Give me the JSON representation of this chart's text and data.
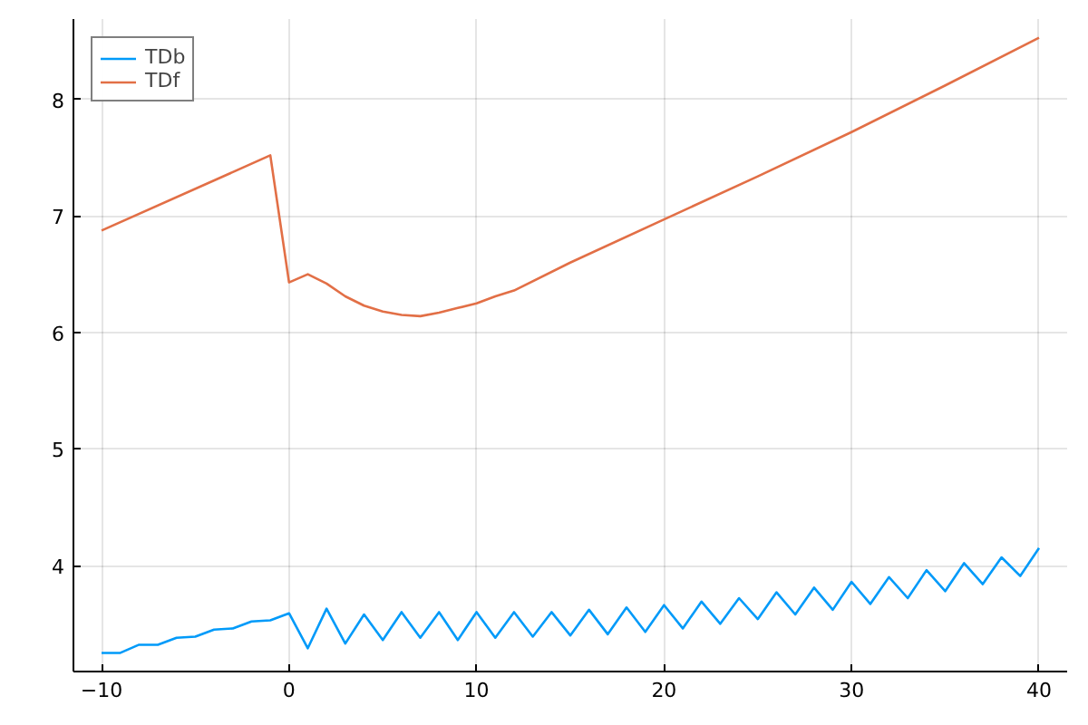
{
  "chart_data": {
    "type": "line",
    "xlim": [
      -11.5,
      41.5
    ],
    "ylim": [
      3.09,
      8.69
    ],
    "xticks": [
      -10,
      0,
      10,
      20,
      30,
      40
    ],
    "yticks": [
      4,
      5,
      6,
      7,
      8
    ],
    "grid": true,
    "legend": "top left",
    "series": [
      {
        "name": "TDb",
        "color": "#009af9",
        "x": [
          -10,
          -9,
          -8,
          -7,
          -6,
          -5,
          -4,
          -3,
          -2,
          -1,
          0,
          1,
          2,
          3,
          4,
          5,
          6,
          7,
          8,
          9,
          10,
          11,
          12,
          13,
          14,
          15,
          16,
          17,
          18,
          19,
          20,
          21,
          22,
          23,
          24,
          25,
          26,
          27,
          28,
          29,
          30,
          31,
          32,
          33,
          34,
          35,
          36,
          37,
          38,
          39,
          40
        ],
        "values": [
          3.25,
          3.25,
          3.32,
          3.32,
          3.38,
          3.39,
          3.45,
          3.46,
          3.52,
          3.53,
          3.59,
          3.29,
          3.63,
          3.33,
          3.58,
          3.36,
          3.6,
          3.38,
          3.6,
          3.36,
          3.6,
          3.38,
          3.6,
          3.39,
          3.6,
          3.4,
          3.62,
          3.41,
          3.64,
          3.43,
          3.66,
          3.46,
          3.69,
          3.5,
          3.72,
          3.54,
          3.77,
          3.58,
          3.81,
          3.62,
          3.86,
          3.67,
          3.9,
          3.72,
          3.96,
          3.78,
          4.02,
          3.84,
          4.07,
          3.91,
          4.15
        ]
      },
      {
        "name": "TDf",
        "color": "#e26f46",
        "x": [
          -10,
          -1,
          0,
          1,
          2,
          3,
          4,
          5,
          6,
          7,
          8,
          9,
          10,
          11,
          12,
          15,
          20,
          25,
          30,
          35,
          40
        ],
        "values": [
          6.875,
          7.52,
          6.43,
          6.5,
          6.42,
          6.31,
          6.23,
          6.18,
          6.15,
          6.14,
          6.17,
          6.21,
          6.25,
          6.31,
          6.36,
          6.6,
          6.97,
          7.34,
          7.72,
          8.12,
          8.53
        ]
      }
    ]
  }
}
